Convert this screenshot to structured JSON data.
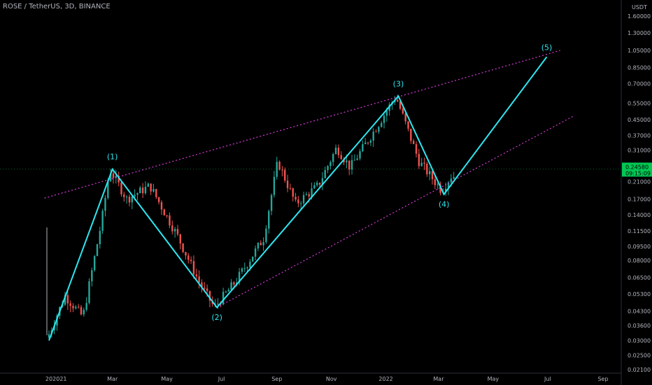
{
  "header": {
    "title": "ROSE / TetherUS, 3D, BINANCE"
  },
  "axis": {
    "currency": "USDT"
  },
  "current_price": {
    "value": "0.24580",
    "countdown": "09:15:09",
    "color": "#00c853"
  },
  "colors": {
    "up": "#26a69a",
    "down": "#ef5350",
    "wave": "#2ee6f0",
    "channel": "#d63bd6",
    "background": "#000000"
  },
  "chart_data": {
    "type": "candlestick",
    "title": "ROSE / TetherUS, 3D, BINANCE",
    "y_scale": "log",
    "ylim": [
      0.021,
      2.0
    ],
    "y_ticks": [
      "1.60000",
      "1.30000",
      "1.05000",
      "0.85000",
      "0.70000",
      "0.55000",
      "0.45000",
      "0.37000",
      "0.31000",
      "0.25000",
      "0.21000",
      "0.17000",
      "0.14000",
      "0.11500",
      "0.09500",
      "0.08000",
      "0.06500",
      "0.05300",
      "0.04300",
      "0.03600",
      "0.03000",
      "0.02500",
      "0.02100"
    ],
    "x_ticks": [
      "20",
      "2021",
      "Mar",
      "May",
      "Jul",
      "Sep",
      "Nov",
      "2022",
      "Mar",
      "May",
      "Jul",
      "Sep"
    ],
    "elliott_wave": [
      {
        "label": "",
        "date": "2020-12-20",
        "price": 0.03
      },
      {
        "label": "(1)",
        "date": "2021-03-01",
        "price": 0.245
      },
      {
        "label": "(2)",
        "date": "2021-06-26",
        "price": 0.045
      },
      {
        "label": "(3)",
        "date": "2022-01-15",
        "price": 0.6
      },
      {
        "label": "(4)",
        "date": "2022-03-07",
        "price": 0.18
      },
      {
        "label": "(5)",
        "date": "2022-06-30",
        "price": 0.97
      }
    ],
    "wave_tail": {
      "date": "2022-03-18",
      "price": 0.225
    },
    "channel_upper": [
      {
        "date": "2020-12-15",
        "price": 0.172
      },
      {
        "date": "2022-07-15",
        "price": 1.05
      }
    ],
    "channel_lower": [
      {
        "date": "2021-06-26",
        "price": 0.045
      },
      {
        "date": "2022-07-30",
        "price": 0.47
      }
    ]
  }
}
